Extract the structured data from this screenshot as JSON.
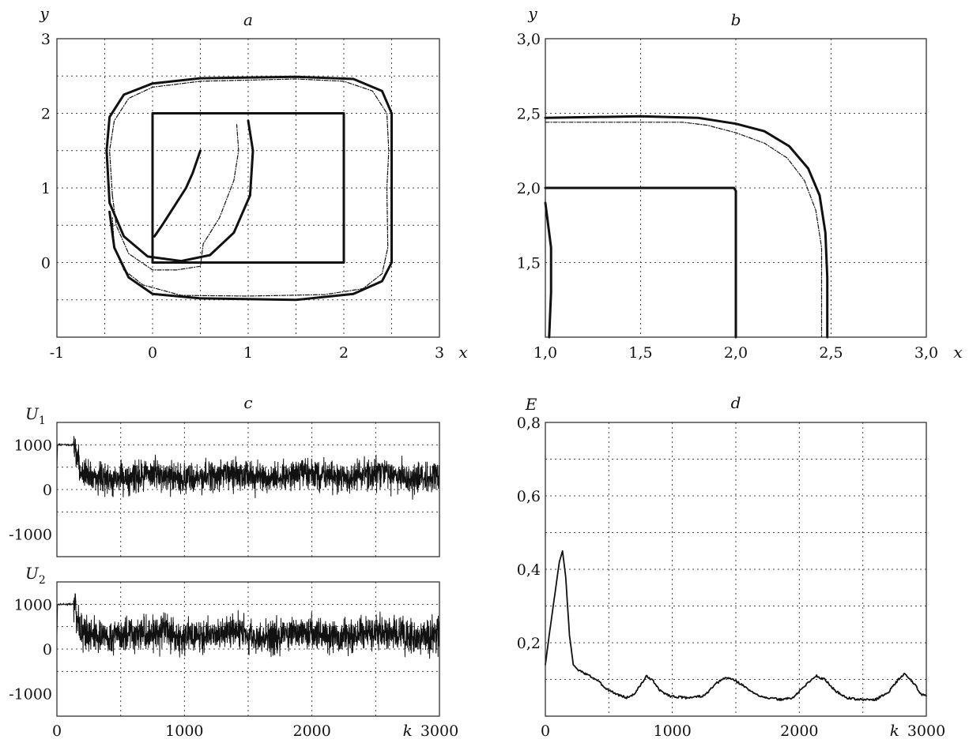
{
  "chart_data": [
    {
      "id": "a",
      "type": "line",
      "title": "a",
      "xlabel": "x",
      "ylabel": "y",
      "xlim": [
        -1,
        3
      ],
      "ylim": [
        -1,
        3
      ],
      "x_ticks": [
        -1,
        0,
        1,
        2,
        3
      ],
      "y_ticks": [
        0,
        1,
        2,
        3
      ],
      "x_tick_labels": [
        "-1",
        "0",
        "1",
        "2",
        "3"
      ],
      "y_tick_labels": [
        "0",
        "1",
        "2",
        "3"
      ],
      "grid": true,
      "series": [
        {
          "style": "thick",
          "points": [
            [
              0,
              0
            ],
            [
              2,
              0
            ],
            [
              2,
              2
            ],
            [
              0,
              2
            ],
            [
              0,
              0
            ]
          ]
        },
        {
          "style": "thick",
          "points": [
            [
              -0.45,
              0.68
            ],
            [
              -0.4,
              0.2
            ],
            [
              -0.25,
              -0.2
            ],
            [
              0,
              -0.42
            ],
            [
              0.5,
              -0.48
            ],
            [
              1.5,
              -0.5
            ],
            [
              2.1,
              -0.42
            ],
            [
              2.4,
              -0.25
            ],
            [
              2.5,
              0
            ],
            [
              2.5,
              2
            ],
            [
              2.4,
              2.3
            ],
            [
              2.1,
              2.46
            ],
            [
              1.5,
              2.49
            ],
            [
              0.5,
              2.47
            ],
            [
              0,
              2.4
            ],
            [
              -0.3,
              2.25
            ],
            [
              -0.45,
              1.95
            ],
            [
              -0.48,
              1.5
            ],
            [
              -0.45,
              0.8
            ],
            [
              -0.3,
              0.35
            ],
            [
              -0.05,
              0.08
            ],
            [
              0.3,
              0.02
            ],
            [
              0.6,
              0.1
            ],
            [
              0.85,
              0.4
            ],
            [
              1.02,
              0.9
            ],
            [
              1.05,
              1.5
            ],
            [
              1.0,
              1.9
            ]
          ]
        },
        {
          "style": "dashed",
          "points": [
            [
              -0.42,
              0.9
            ],
            [
              -0.38,
              0.5
            ],
            [
              -0.25,
              0.12
            ],
            [
              0,
              -0.1
            ],
            [
              0.25,
              -0.1
            ],
            [
              0.5,
              -0.05
            ],
            [
              0.53,
              0.25
            ],
            [
              0.7,
              0.6
            ],
            [
              0.85,
              1.1
            ],
            [
              0.9,
              1.5
            ],
            [
              0.88,
              1.85
            ]
          ]
        },
        {
          "style": "dashed",
          "points": [
            [
              -0.42,
              0.9
            ],
            [
              -0.45,
              1.5
            ],
            [
              -0.4,
              1.9
            ],
            [
              -0.25,
              2.2
            ],
            [
              0.0,
              2.35
            ],
            [
              0.5,
              2.43
            ],
            [
              1.5,
              2.46
            ],
            [
              2.0,
              2.43
            ],
            [
              2.3,
              2.3
            ],
            [
              2.45,
              2.0
            ],
            [
              2.47,
              1.5
            ],
            [
              2.45,
              1.0
            ],
            [
              2.46,
              0.2
            ],
            [
              2.4,
              -0.15
            ],
            [
              2.2,
              -0.35
            ],
            [
              1.8,
              -0.43
            ],
            [
              1.0,
              -0.45
            ],
            [
              0.3,
              -0.44
            ],
            [
              -0.1,
              -0.3
            ],
            [
              -0.3,
              -0.1
            ],
            [
              -0.4,
              0.2
            ],
            [
              -0.42,
              0.6
            ]
          ]
        },
        {
          "style": "thick",
          "points": [
            [
              0.02,
              0.35
            ],
            [
              0.1,
              0.5
            ],
            [
              0.25,
              0.8
            ],
            [
              0.35,
              1.0
            ],
            [
              0.42,
              1.2
            ],
            [
              0.5,
              1.5
            ]
          ]
        }
      ]
    },
    {
      "id": "b",
      "type": "line",
      "title": "b",
      "xlabel": "x",
      "ylabel": "y",
      "xlim": [
        1.0,
        3.0
      ],
      "ylim": [
        1.0,
        3.0
      ],
      "x_ticks": [
        1.0,
        1.5,
        2.0,
        2.5,
        3.0
      ],
      "y_ticks": [
        1.5,
        2.0,
        2.5,
        3.0
      ],
      "x_tick_labels": [
        "1,0",
        "1,5",
        "2,0",
        "2,5",
        "3,0"
      ],
      "y_tick_labels": [
        "1,5",
        "2,0",
        "2,5",
        "3,0"
      ],
      "y_tick_labels_extra": {
        "1.0": "1,0"
      },
      "grid": true,
      "series": [
        {
          "style": "thick",
          "points": [
            [
              1.0,
              2.0
            ],
            [
              1.99,
              2.0
            ],
            [
              2.0,
              1.98
            ],
            [
              2.0,
              1.0
            ]
          ]
        },
        {
          "style": "thick",
          "points": [
            [
              1.0,
              2.47
            ],
            [
              1.5,
              2.48
            ],
            [
              1.8,
              2.47
            ],
            [
              2.0,
              2.43
            ],
            [
              2.15,
              2.38
            ],
            [
              2.28,
              2.28
            ],
            [
              2.38,
              2.13
            ],
            [
              2.44,
              1.95
            ],
            [
              2.47,
              1.7
            ],
            [
              2.48,
              1.4
            ],
            [
              2.48,
              1.0
            ]
          ]
        },
        {
          "style": "dashed",
          "points": [
            [
              1.0,
              2.44
            ],
            [
              1.3,
              2.44
            ],
            [
              1.72,
              2.44
            ],
            [
              1.85,
              2.42
            ],
            [
              2.0,
              2.37
            ],
            [
              2.15,
              2.3
            ],
            [
              2.27,
              2.2
            ],
            [
              2.36,
              2.05
            ],
            [
              2.42,
              1.85
            ],
            [
              2.45,
              1.6
            ],
            [
              2.45,
              1.3
            ],
            [
              2.45,
              1.0
            ]
          ]
        },
        {
          "style": "thick",
          "points": [
            [
              1.0,
              1.9
            ],
            [
              1.03,
              1.6
            ],
            [
              1.03,
              1.3
            ],
            [
              1.02,
              1.0
            ]
          ]
        }
      ]
    },
    {
      "id": "c1",
      "type": "line",
      "title": "c",
      "ylabel": "U",
      "ylabel_sub": "1",
      "xlim": [
        0,
        3000
      ],
      "ylim": [
        -1500,
        1500
      ],
      "x_ticks": [
        0,
        1000,
        2000,
        3000
      ],
      "y_ticks": [
        -1000,
        0,
        1000
      ],
      "y_tick_labels": [
        "-1000",
        "0",
        "1000"
      ],
      "grid": true,
      "noise": {
        "start": 500,
        "plateau": 1000,
        "plateau_end": 130,
        "mean": 300,
        "amp": 380,
        "seed": 7
      }
    },
    {
      "id": "c2",
      "type": "line",
      "ylabel": "U",
      "ylabel_sub": "2",
      "xlabel": "k",
      "xlim": [
        0,
        3000
      ],
      "ylim": [
        -1500,
        1500
      ],
      "x_ticks": [
        0,
        1000,
        2000,
        3000
      ],
      "x_tick_labels": [
        "0",
        "1000",
        "2000",
        "3000"
      ],
      "y_ticks": [
        -1000,
        0,
        1000
      ],
      "y_tick_labels": [
        "-1000",
        "0",
        "1000"
      ],
      "grid": true,
      "noise": {
        "start": 300,
        "plateau": 1000,
        "plateau_end": 130,
        "mean": 320,
        "amp": 420,
        "seed": 13
      }
    },
    {
      "id": "d",
      "type": "line",
      "title": "d",
      "ylabel": "E",
      "xlabel": "k",
      "xlim": [
        0,
        3000
      ],
      "ylim": [
        0,
        0.8
      ],
      "x_ticks": [
        0,
        1000,
        2000,
        3000
      ],
      "x_tick_labels": [
        "0",
        "1000",
        "2000",
        "3000"
      ],
      "y_ticks": [
        0.2,
        0.4,
        0.6,
        0.8
      ],
      "y_tick_labels": [
        "0,2",
        "0,4",
        "0,6",
        "0,8"
      ],
      "grid": true,
      "series": [
        {
          "style": "thin",
          "points": [
            [
              0,
              0.14
            ],
            [
              30,
              0.22
            ],
            [
              70,
              0.32
            ],
            [
              110,
              0.42
            ],
            [
              135,
              0.45
            ],
            [
              160,
              0.38
            ],
            [
              190,
              0.22
            ],
            [
              220,
              0.14
            ],
            [
              260,
              0.125
            ],
            [
              320,
              0.115
            ],
            [
              400,
              0.1
            ],
            [
              480,
              0.075
            ],
            [
              560,
              0.06
            ],
            [
              640,
              0.05
            ],
            [
              700,
              0.06
            ],
            [
              760,
              0.09
            ],
            [
              800,
              0.11
            ],
            [
              850,
              0.095
            ],
            [
              900,
              0.07
            ],
            [
              980,
              0.055
            ],
            [
              1100,
              0.05
            ],
            [
              1250,
              0.055
            ],
            [
              1350,
              0.09
            ],
            [
              1420,
              0.105
            ],
            [
              1480,
              0.1
            ],
            [
              1550,
              0.085
            ],
            [
              1650,
              0.06
            ],
            [
              1750,
              0.05
            ],
            [
              1850,
              0.045
            ],
            [
              1950,
              0.05
            ],
            [
              2050,
              0.085
            ],
            [
              2130,
              0.11
            ],
            [
              2200,
              0.1
            ],
            [
              2280,
              0.07
            ],
            [
              2370,
              0.05
            ],
            [
              2480,
              0.045
            ],
            [
              2600,
              0.045
            ],
            [
              2700,
              0.065
            ],
            [
              2780,
              0.1
            ],
            [
              2830,
              0.115
            ],
            [
              2900,
              0.09
            ],
            [
              2960,
              0.06
            ],
            [
              3000,
              0.055
            ]
          ]
        }
      ]
    }
  ]
}
